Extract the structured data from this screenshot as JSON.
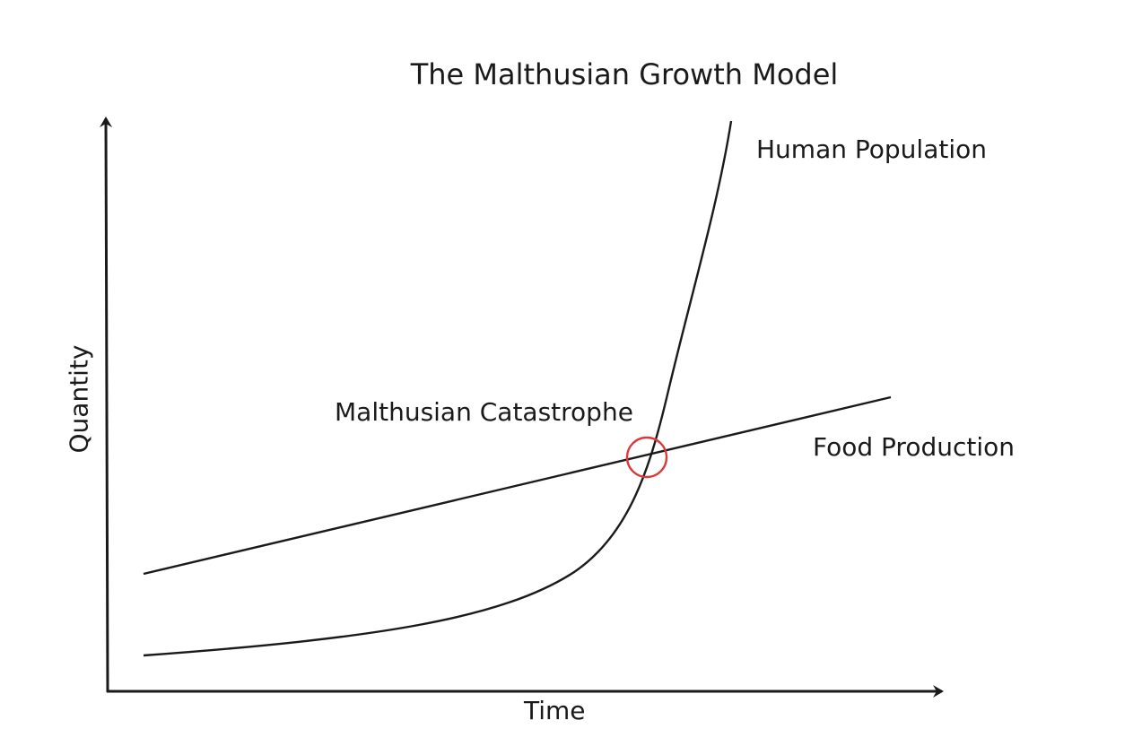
{
  "diagram": {
    "title": "The Malthusian Growth Model",
    "x_axis_label": "Time",
    "y_axis_label": "Quantity",
    "curves": [
      {
        "id": "population",
        "label": "Human Population",
        "shape": "exponential"
      },
      {
        "id": "food",
        "label": "Food Production",
        "shape": "linear"
      }
    ],
    "annotation": {
      "label": "Malthusian Catastrophe",
      "marker_color": "#d93a3a"
    },
    "colors": {
      "line": "#1a1a1a",
      "marker": "#d93a3a",
      "background": "#ffffff"
    }
  }
}
